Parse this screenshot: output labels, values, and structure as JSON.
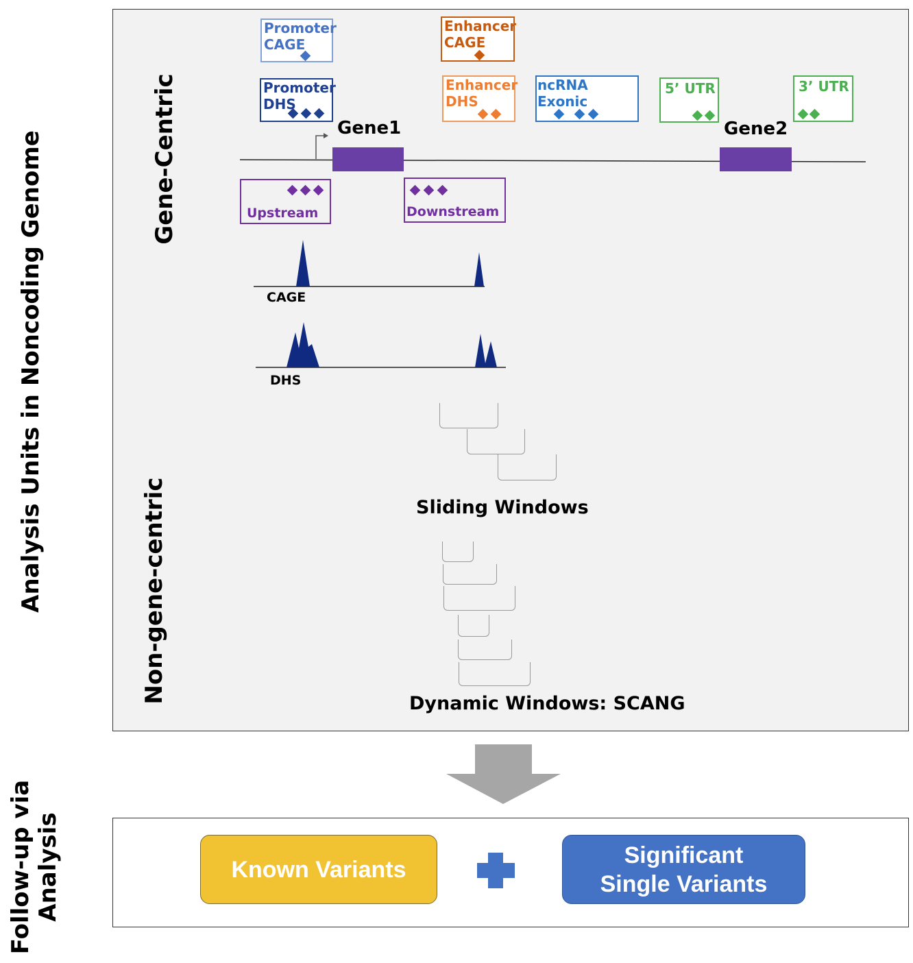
{
  "left_labels": {
    "main": "Analysis Units in Noncoding Genome",
    "followup": "Follow-up via\nAnalysis"
  },
  "section_labels": {
    "gene_centric": "Gene-Centric",
    "non_gene_centric": "Non-gene-centric"
  },
  "annotation_boxes": [
    {
      "id": "promoter-cage",
      "label": "Promoter\nCAGE",
      "color": "#4472c4"
    },
    {
      "id": "enhancer-cage",
      "label": "Enhancer\nCAGE",
      "color": "#c55a11"
    },
    {
      "id": "promoter-dhs",
      "label": "Promoter\nDHS",
      "color": "#1f3f8f"
    },
    {
      "id": "enhancer-dhs",
      "label": "Enhancer\nDHS",
      "color": "#ed7d31"
    },
    {
      "id": "ncrna-exonic",
      "label": "ncRNA Exonic",
      "color": "#2e75c6"
    },
    {
      "id": "utr5",
      "label": "5’ UTR",
      "color": "#4caf50"
    },
    {
      "id": "utr3",
      "label": "3’ UTR",
      "color": "#4caf50"
    },
    {
      "id": "upstream",
      "label": "Upstream",
      "color": "#7030a0"
    },
    {
      "id": "downstream",
      "label": "Downstream",
      "color": "#7030a0"
    }
  ],
  "genes": {
    "gene1": "Gene1",
    "gene2": "Gene2",
    "color": "#6a3fa5"
  },
  "tracks": {
    "cage": "CAGE",
    "dhs": "DHS",
    "peak_color": "#0f2a80"
  },
  "windows": {
    "sliding": "Sliding Windows",
    "dynamic": "Dynamic Windows: SCANG"
  },
  "followup": {
    "known": "Known Variants",
    "known_color": "#f1c232",
    "significant": "Significant\nSingle Variants",
    "significant_color": "#4472c4",
    "plus_color": "#4472c4"
  },
  "arrow_color": "#a6a6a6"
}
